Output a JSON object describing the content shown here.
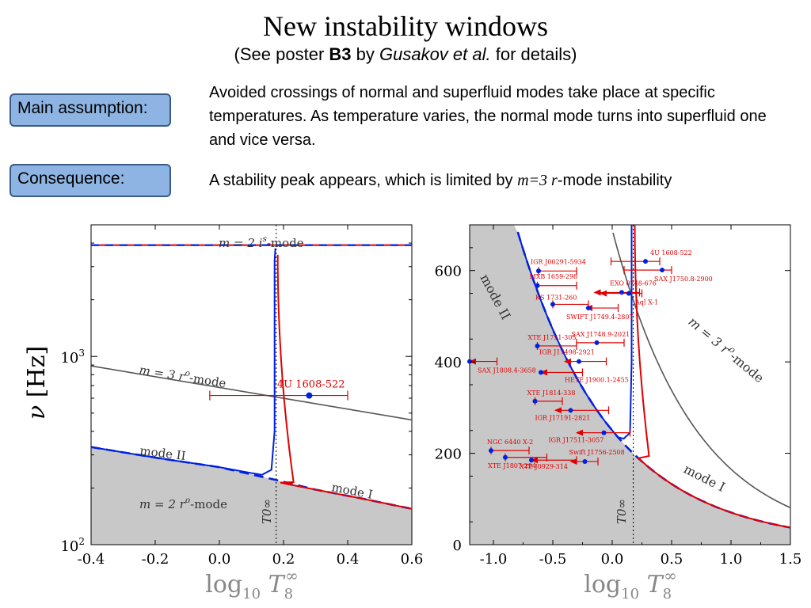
{
  "slide": {
    "title": "New instability windows",
    "subtitle_parts": [
      "(See poster ",
      "B3",
      " by ",
      "Gusakov et al.",
      " for details)"
    ],
    "main_assumption_label": "Main assumption:",
    "main_assumption_text": "Avoided crossings of normal and superfluid modes take place at specific temperatures. As temperature  varies, the normal mode turns into superfluid one and vice versa.",
    "consequence_label": "Consequence:",
    "consequence_parts": [
      "A stability peak appears, which is limited by ",
      "m",
      "=3 ",
      "r",
      "-mode instability"
    ]
  },
  "chart_data": [
    {
      "type": "line",
      "panel": "left",
      "xlabel": "log10 T8∞",
      "ylabel": "ν [Hz]",
      "xlim": [
        -0.4,
        0.6
      ],
      "ylim": [
        100,
        5000
      ],
      "yscale": "log",
      "xticks": [
        "-0.4",
        "-0.2",
        "0.0",
        "0.2",
        "0.4",
        "0.6"
      ],
      "yticks": [
        {
          "base": "10",
          "exp": "2",
          "value": 100
        },
        {
          "base": "10",
          "exp": "3",
          "value": 1000
        }
      ],
      "curve_labels": {
        "is_mode": "m = 2 i^s-mode",
        "r3_mode": "m = 3 r^o-mode",
        "mode2": "mode II",
        "mode1": "mode I",
        "r2_mode": "m = 2 r^o-mode",
        "t0": "T0∞"
      },
      "series": [
        {
          "name": "m = 2 i^s-mode",
          "x": [
            -0.4,
            0.6
          ],
          "y": [
            3900,
            3900
          ]
        },
        {
          "name": "m = 3 r^o-mode",
          "x": [
            -0.4,
            0.6
          ],
          "y": [
            890,
            460
          ]
        },
        {
          "name": "mode II",
          "x": [
            -0.4,
            -0.2,
            0.0,
            0.1,
            0.17
          ],
          "y": [
            330,
            290,
            258,
            240,
            230
          ]
        },
        {
          "name": "mode I",
          "x": [
            0.18,
            0.3,
            0.45,
            0.6
          ],
          "y": [
            215,
            196,
            175,
            155
          ]
        },
        {
          "name": "m = 2 r^o-mode",
          "x": [
            -0.4,
            -0.2,
            0.0,
            0.18,
            0.3,
            0.45,
            0.6
          ],
          "y": [
            330,
            290,
            258,
            220,
            196,
            175,
            155
          ]
        }
      ],
      "t0_log": 0.177,
      "sources": [
        {
          "name": "4U 1608-522",
          "logT": 0.28,
          "nu": 620,
          "logT_min": -0.03,
          "logT_max": 0.4
        }
      ]
    },
    {
      "type": "line",
      "panel": "right",
      "xlabel": "log10 T8∞",
      "xlim": [
        -1.2,
        1.5
      ],
      "ylim": [
        0,
        700
      ],
      "xticks": [
        "-1.0",
        "-0.5",
        "0.0",
        "0.5",
        "1.0",
        "1.5"
      ],
      "yticks": [
        "0",
        "200",
        "400",
        "600"
      ],
      "curve_labels": {
        "mode2": "mode II",
        "mode1": "mode I",
        "r3_mode": "m = 3 r^o-mode",
        "t0": "T0∞"
      },
      "t0_log": 0.177,
      "sources": [
        {
          "name": "4U 1608-522",
          "logT": 0.28,
          "nu": 620,
          "logT_min": -0.01,
          "logT_max": 0.4,
          "arrow": "none"
        },
        {
          "name": "SAX J1750.8-2900",
          "logT": 0.42,
          "nu": 601,
          "logT_min": 0.1,
          "logT_max": 0.5,
          "arrow": "none"
        },
        {
          "name": "IGR J00291-5934",
          "logT": -0.62,
          "nu": 599,
          "logT_min": -0.62,
          "logT_max": -0.3,
          "arrow": "none"
        },
        {
          "name": "MXB 1659-298",
          "logT": -0.63,
          "nu": 567,
          "logT_min": -0.63,
          "logT_max": -0.3,
          "arrow": "none"
        },
        {
          "name": "EXO 0748-676",
          "logT": 0.08,
          "nu": 552,
          "logT_min": -0.15,
          "logT_max": 0.23,
          "arrow": "left"
        },
        {
          "name": "Aql X-1",
          "logT": 0.14,
          "nu": 550,
          "logT_min": -0.1,
          "logT_max": 0.25,
          "arrow": "left"
        },
        {
          "name": "KS 1731-260",
          "logT": -0.5,
          "nu": 526,
          "logT_min": -0.5,
          "logT_max": -0.2,
          "arrow": "none"
        },
        {
          "name": "SWIFT J1749.4-2807",
          "logT": -0.2,
          "nu": 518,
          "logT_min": -0.22,
          "logT_max": 0.05,
          "arrow": "left"
        },
        {
          "name": "XTE J1751-305",
          "logT": -0.63,
          "nu": 435,
          "logT_min": -0.63,
          "logT_max": -0.3,
          "arrow": "none"
        },
        {
          "name": "SAX J1748.9-2021",
          "logT": -0.13,
          "nu": 442,
          "logT_min": -0.3,
          "logT_max": 0.1,
          "arrow": "none"
        },
        {
          "name": "IGR J17498-2921",
          "logT": -0.28,
          "nu": 401,
          "logT_min": -0.4,
          "logT_max": -0.05,
          "arrow": "left"
        },
        {
          "name": "SAX J1808.4-3658",
          "logT": -1.2,
          "nu": 401,
          "logT_min": -1.2,
          "logT_max": -0.97,
          "arrow": "left"
        },
        {
          "name": "HETE J1900.1-2455",
          "logT": -0.6,
          "nu": 377,
          "logT_min": -0.6,
          "logT_max": -0.25,
          "arrow": "left"
        },
        {
          "name": "XTE J1814-338",
          "logT": -0.65,
          "nu": 314,
          "logT_min": -0.65,
          "logT_max": -0.42,
          "arrow": "none"
        },
        {
          "name": "IGR J17191-2821",
          "logT": -0.35,
          "nu": 294,
          "logT_min": -0.48,
          "logT_max": -0.03,
          "arrow": "left"
        },
        {
          "name": "IGR J17511-3057",
          "logT": -0.07,
          "nu": 245,
          "logT_min": -0.3,
          "logT_max": 0.15,
          "arrow": "left"
        },
        {
          "name": "NGC 6440 X-2",
          "logT": -1.02,
          "nu": 206,
          "logT_min": -1.02,
          "logT_max": -0.7,
          "arrow": "none"
        },
        {
          "name": "Swift J1756-2508",
          "logT": -0.23,
          "nu": 182,
          "logT_min": -0.35,
          "logT_max": -0.12,
          "arrow": "left"
        },
        {
          "name": "XTE J1807-294",
          "logT": -0.9,
          "nu": 191,
          "logT_min": -0.9,
          "logT_max": -0.55,
          "arrow": "none"
        },
        {
          "name": "XTE J0929-314",
          "logT": -0.68,
          "nu": 185,
          "logT_min": -0.68,
          "logT_max": -0.3,
          "arrow": "left"
        }
      ]
    }
  ]
}
